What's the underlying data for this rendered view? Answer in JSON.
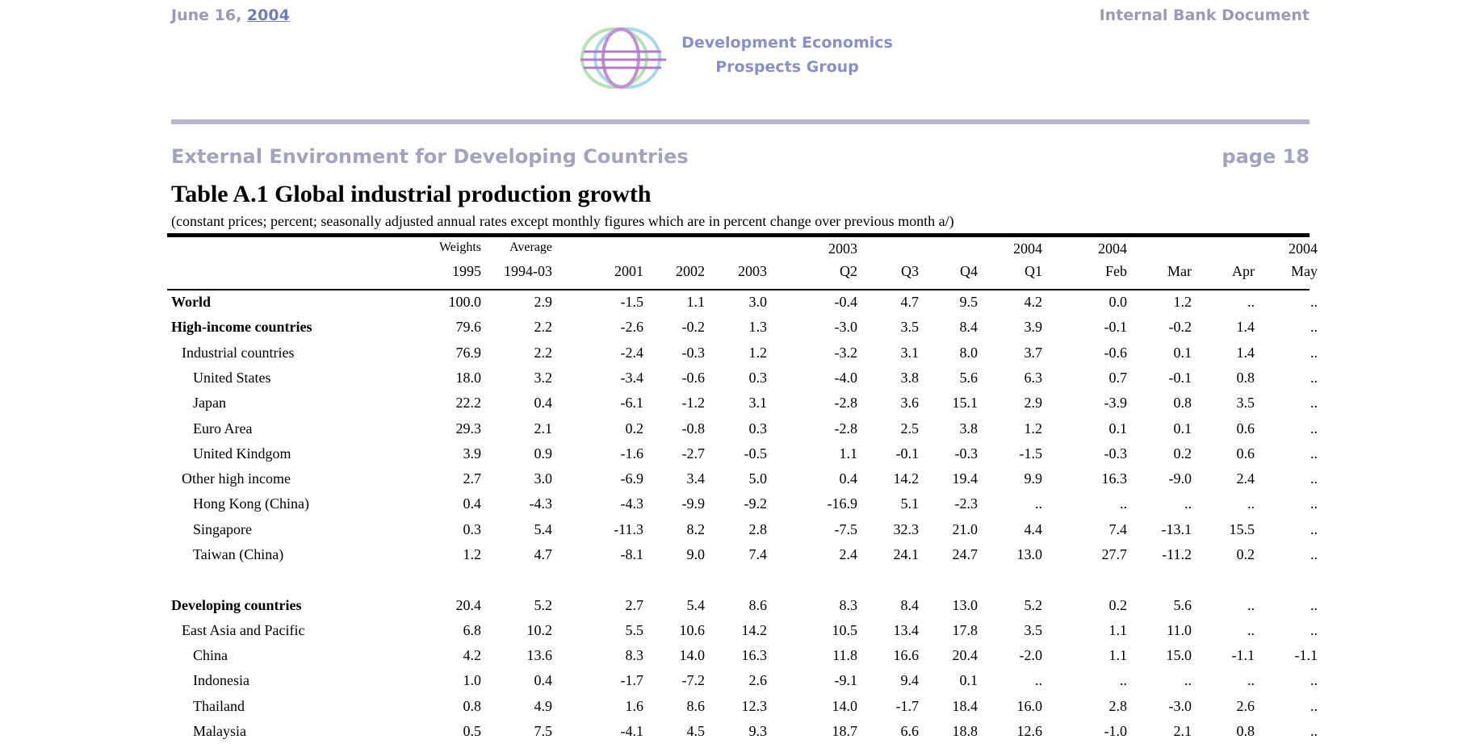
{
  "header": {
    "date_prefix": "June 16, ",
    "date_year": "2004",
    "doc_label": "Internal Bank Document",
    "org_line1": "Development Economics",
    "org_line2": "Prospects Group"
  },
  "section": {
    "title": "External Environment for Developing Countries",
    "page": "page 18"
  },
  "table": {
    "title": "Table A.1 Global industrial production growth",
    "subtitle": "(constant prices; percent; seasonally adjusted annual rates except monthly figures which are in percent change over previous month a/)",
    "header_top": [
      "Weights",
      "Average",
      "",
      "",
      "",
      "2003",
      "",
      "",
      "2004",
      "2004",
      "",
      "",
      "2004"
    ],
    "header_bottom": [
      "1995",
      "1994-03",
      "2001",
      "2002",
      "2003",
      "Q2",
      "Q3",
      "Q4",
      "Q1",
      "Feb",
      "Mar",
      "Apr",
      "May"
    ],
    "rows": [
      {
        "label": "World",
        "bold": true,
        "indent": 0,
        "values": [
          "100.0",
          "2.9",
          "-1.5",
          "1.1",
          "3.0",
          "-0.4",
          "4.7",
          "9.5",
          "4.2",
          "0.0",
          "1.2",
          "..",
          ".."
        ]
      },
      {
        "label": "High-income countries",
        "bold": true,
        "indent": 0,
        "values": [
          "79.6",
          "2.2",
          "-2.6",
          "-0.2",
          "1.3",
          "-3.0",
          "3.5",
          "8.4",
          "3.9",
          "-0.1",
          "-0.2",
          "1.4",
          ".."
        ]
      },
      {
        "label": "Industrial countries",
        "bold": false,
        "indent": 1,
        "values": [
          "76.9",
          "2.2",
          "-2.4",
          "-0.3",
          "1.2",
          "-3.2",
          "3.1",
          "8.0",
          "3.7",
          "-0.6",
          "0.1",
          "1.4",
          ".."
        ]
      },
      {
        "label": "United States",
        "bold": false,
        "indent": 2,
        "values": [
          "18.0",
          "3.2",
          "-3.4",
          "-0.6",
          "0.3",
          "-4.0",
          "3.8",
          "5.6",
          "6.3",
          "0.7",
          "-0.1",
          "0.8",
          ".."
        ]
      },
      {
        "label": "Japan",
        "bold": false,
        "indent": 2,
        "values": [
          "22.2",
          "0.4",
          "-6.1",
          "-1.2",
          "3.1",
          "-2.8",
          "3.6",
          "15.1",
          "2.9",
          "-3.9",
          "0.8",
          "3.5",
          ".."
        ]
      },
      {
        "label": "Euro Area",
        "bold": false,
        "indent": 2,
        "values": [
          "29.3",
          "2.1",
          "0.2",
          "-0.8",
          "0.3",
          "-2.8",
          "2.5",
          "3.8",
          "1.2",
          "0.1",
          "0.1",
          "0.6",
          ".."
        ]
      },
      {
        "label": "United Kindgom",
        "bold": false,
        "indent": 2,
        "values": [
          "3.9",
          "0.9",
          "-1.6",
          "-2.7",
          "-0.5",
          "1.1",
          "-0.1",
          "-0.3",
          "-1.5",
          "-0.3",
          "0.2",
          "0.6",
          ".."
        ]
      },
      {
        "label": "Other high income",
        "bold": false,
        "indent": 1,
        "values": [
          "2.7",
          "3.0",
          "-6.9",
          "3.4",
          "5.0",
          "0.4",
          "14.2",
          "19.4",
          "9.9",
          "16.3",
          "-9.0",
          "2.4",
          ".."
        ]
      },
      {
        "label": "Hong Kong (China)",
        "bold": false,
        "indent": 2,
        "values": [
          "0.4",
          "-4.3",
          "-4.3",
          "-9.9",
          "-9.2",
          "-16.9",
          "5.1",
          "-2.3",
          "..",
          "..",
          "..",
          "..",
          ".."
        ]
      },
      {
        "label": "Singapore",
        "bold": false,
        "indent": 2,
        "values": [
          "0.3",
          "5.4",
          "-11.3",
          "8.2",
          "2.8",
          "-7.5",
          "32.3",
          "21.0",
          "4.4",
          "7.4",
          "-13.1",
          "15.5",
          ".."
        ]
      },
      {
        "label": "Taiwan (China)",
        "bold": false,
        "indent": 2,
        "values": [
          "1.2",
          "4.7",
          "-8.1",
          "9.0",
          "7.4",
          "2.4",
          "24.1",
          "24.7",
          "13.0",
          "27.7",
          "-11.2",
          "0.2",
          ".."
        ]
      },
      {
        "label": "Developing countries",
        "bold": true,
        "indent": 0,
        "gap_before": true,
        "values": [
          "20.4",
          "5.2",
          "2.7",
          "5.4",
          "8.6",
          "8.3",
          "8.4",
          "13.0",
          "5.2",
          "0.2",
          "5.6",
          "..",
          ".."
        ]
      },
      {
        "label": "East Asia and Pacific",
        "bold": false,
        "indent": 1,
        "values": [
          "6.8",
          "10.2",
          "5.5",
          "10.6",
          "14.2",
          "10.5",
          "13.4",
          "17.8",
          "3.5",
          "1.1",
          "11.0",
          "..",
          ".."
        ]
      },
      {
        "label": "China",
        "bold": false,
        "indent": 2,
        "values": [
          "4.2",
          "13.6",
          "8.3",
          "14.0",
          "16.3",
          "11.8",
          "16.6",
          "20.4",
          "-2.0",
          "1.1",
          "15.0",
          "-1.1",
          "-1.1"
        ]
      },
      {
        "label": "Indonesia",
        "bold": false,
        "indent": 2,
        "values": [
          "1.0",
          "0.4",
          "-1.7",
          "-7.2",
          "2.6",
          "-9.1",
          "9.4",
          "0.1",
          "..",
          "..",
          "..",
          "..",
          ".."
        ]
      },
      {
        "label": "Thailand",
        "bold": false,
        "indent": 2,
        "values": [
          "0.8",
          "4.9",
          "1.6",
          "8.6",
          "12.3",
          "14.0",
          "-1.7",
          "18.4",
          "16.0",
          "2.8",
          "-3.0",
          "2.6",
          ".."
        ]
      },
      {
        "label": "Malaysia",
        "bold": false,
        "indent": 2,
        "values": [
          "0.5",
          "7.5",
          "-4.1",
          "4.5",
          "9.3",
          "18.7",
          "6.6",
          "18.8",
          "12.6",
          "-1.0",
          "2.1",
          "0.8",
          ".."
        ]
      }
    ]
  }
}
